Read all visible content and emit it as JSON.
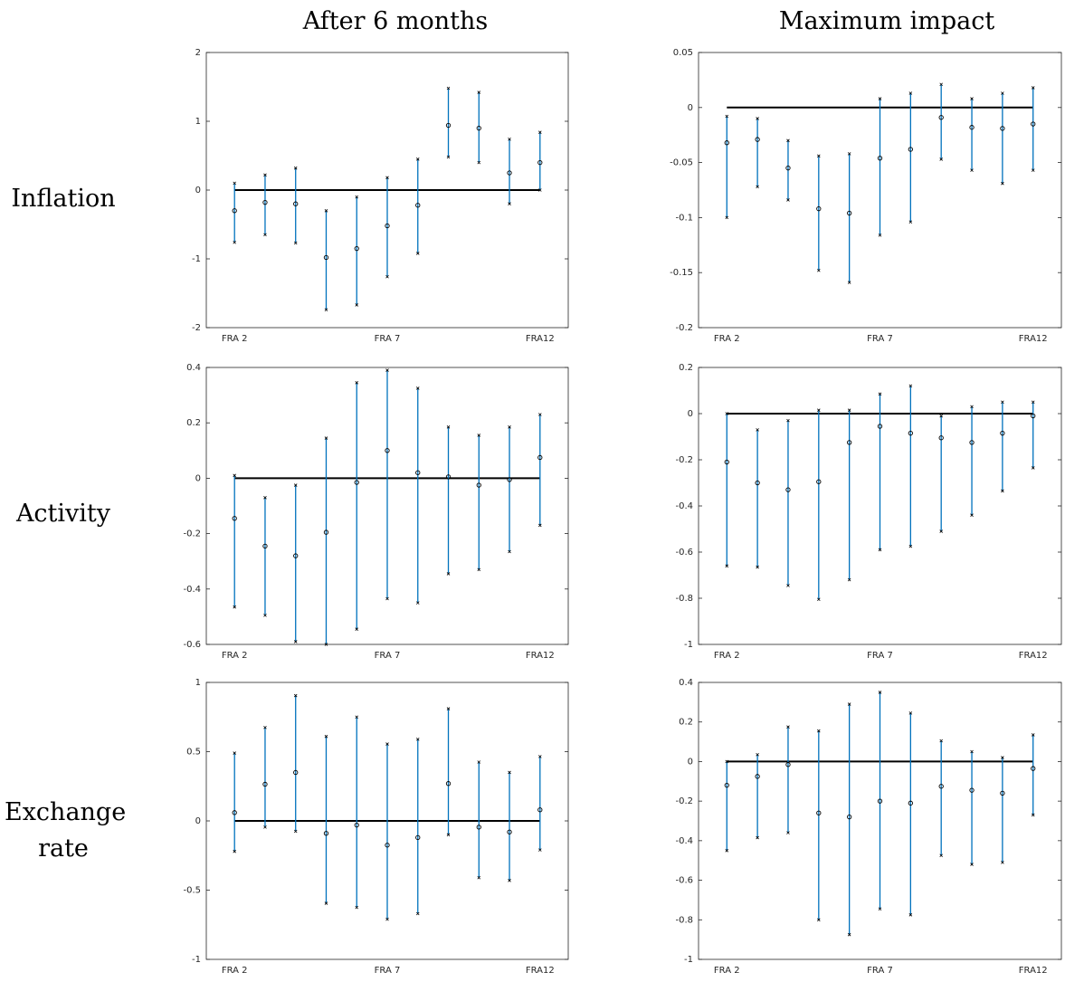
{
  "figure": {
    "columns": [
      "After 6 months",
      "Maximum impact"
    ],
    "rows": [
      "Inflation",
      "Activity",
      "Exchange rate"
    ]
  },
  "chart_data": [
    {
      "type": "errorbar",
      "color": "#0072bd",
      "hline": 0,
      "categories": [
        "FRA 2",
        null,
        null,
        null,
        null,
        "FRA 7",
        null,
        null,
        null,
        null,
        "FRA12"
      ],
      "values": [
        -0.3,
        -0.18,
        -0.2,
        -0.98,
        -0.85,
        -0.52,
        -0.22,
        0.94,
        0.9,
        0.25,
        0.4
      ],
      "lower": [
        -0.76,
        -0.65,
        -0.77,
        -1.74,
        -1.67,
        -1.26,
        -0.92,
        0.48,
        0.4,
        -0.2,
        0.0
      ],
      "upper": [
        0.1,
        0.22,
        0.32,
        -0.3,
        -0.1,
        0.18,
        0.45,
        1.48,
        1.42,
        0.74,
        0.84
      ],
      "ylim": [
        -2,
        2
      ],
      "yticks": [
        -2,
        -1,
        0,
        1,
        2
      ]
    },
    {
      "type": "errorbar",
      "color": "#0072bd",
      "hline": 0,
      "categories": [
        "FRA 2",
        null,
        null,
        null,
        null,
        "FRA 7",
        null,
        null,
        null,
        null,
        "FRA12"
      ],
      "values": [
        -0.032,
        -0.029,
        -0.055,
        -0.092,
        -0.096,
        -0.046,
        -0.038,
        -0.009,
        -0.018,
        -0.019,
        -0.015
      ],
      "lower": [
        -0.1,
        -0.072,
        -0.084,
        -0.148,
        -0.159,
        -0.116,
        -0.104,
        -0.047,
        -0.057,
        -0.069,
        -0.057
      ],
      "upper": [
        -0.008,
        -0.01,
        -0.03,
        -0.044,
        -0.042,
        0.008,
        0.013,
        0.021,
        0.008,
        0.013,
        0.018
      ],
      "ylim": [
        -0.2,
        0.05
      ],
      "yticks": [
        -0.2,
        -0.15,
        -0.1,
        -0.05,
        0,
        0.05
      ]
    },
    {
      "type": "errorbar",
      "color": "#0072bd",
      "hline": 0,
      "categories": [
        "FRA 2",
        null,
        null,
        null,
        null,
        "FRA 7",
        null,
        null,
        null,
        null,
        "FRA12"
      ],
      "values": [
        -0.145,
        -0.245,
        -0.28,
        -0.195,
        -0.015,
        0.1,
        0.02,
        0.005,
        -0.025,
        -0.005,
        0.075
      ],
      "lower": [
        -0.465,
        -0.495,
        -0.59,
        -0.6,
        -0.545,
        -0.435,
        -0.45,
        -0.345,
        -0.33,
        -0.265,
        -0.17
      ],
      "upper": [
        0.01,
        -0.07,
        -0.025,
        0.145,
        0.345,
        0.39,
        0.325,
        0.185,
        0.155,
        0.185,
        0.23
      ],
      "ylim": [
        -0.6,
        0.4
      ],
      "yticks": [
        -0.6,
        -0.4,
        -0.2,
        0,
        0.2,
        0.4
      ]
    },
    {
      "type": "errorbar",
      "color": "#0072bd",
      "hline": 0,
      "categories": [
        "FRA 2",
        null,
        null,
        null,
        null,
        "FRA 7",
        null,
        null,
        null,
        null,
        "FRA12"
      ],
      "values": [
        -0.21,
        -0.3,
        -0.33,
        -0.295,
        -0.125,
        -0.055,
        -0.085,
        -0.105,
        -0.125,
        -0.085,
        -0.01
      ],
      "lower": [
        -0.66,
        -0.665,
        -0.745,
        -0.805,
        -0.72,
        -0.59,
        -0.575,
        -0.51,
        -0.44,
        -0.335,
        -0.235
      ],
      "upper": [
        0.0,
        -0.07,
        -0.03,
        0.015,
        0.015,
        0.085,
        0.12,
        -0.01,
        0.03,
        0.05,
        0.05
      ],
      "ylim": [
        -1,
        0.2
      ],
      "yticks": [
        -1,
        -0.8,
        -0.6,
        -0.4,
        -0.2,
        0,
        0.2
      ]
    },
    {
      "type": "errorbar",
      "color": "#0072bd",
      "hline": 0,
      "categories": [
        "FRA 2",
        null,
        null,
        null,
        null,
        "FRA 7",
        null,
        null,
        null,
        null,
        "FRA12"
      ],
      "values": [
        0.06,
        0.265,
        0.35,
        -0.09,
        -0.03,
        -0.175,
        -0.12,
        0.27,
        -0.045,
        -0.08,
        0.08
      ],
      "lower": [
        -0.22,
        -0.045,
        -0.075,
        -0.595,
        -0.625,
        -0.71,
        -0.67,
        -0.1,
        -0.41,
        -0.43,
        -0.21
      ],
      "upper": [
        0.49,
        0.675,
        0.905,
        0.61,
        0.75,
        0.555,
        0.59,
        0.81,
        0.425,
        0.35,
        0.465
      ],
      "ylim": [
        -1,
        1
      ],
      "yticks": [
        -1,
        -0.5,
        0,
        0.5,
        1
      ]
    },
    {
      "type": "errorbar",
      "color": "#0072bd",
      "hline": 0,
      "categories": [
        "FRA 2",
        null,
        null,
        null,
        null,
        "FRA 7",
        null,
        null,
        null,
        null,
        "FRA12"
      ],
      "values": [
        -0.12,
        -0.075,
        -0.015,
        -0.26,
        -0.28,
        -0.2,
        -0.21,
        -0.125,
        -0.145,
        -0.16,
        -0.035
      ],
      "lower": [
        -0.45,
        -0.385,
        -0.36,
        -0.8,
        -0.875,
        -0.745,
        -0.775,
        -0.475,
        -0.52,
        -0.51,
        -0.27
      ],
      "upper": [
        0.0,
        0.035,
        0.175,
        0.155,
        0.29,
        0.35,
        0.245,
        0.105,
        0.05,
        0.02,
        0.135
      ],
      "ylim": [
        -1,
        0.4
      ],
      "yticks": [
        -1,
        -0.8,
        -0.6,
        -0.4,
        -0.2,
        0,
        0.2,
        0.4
      ]
    }
  ]
}
